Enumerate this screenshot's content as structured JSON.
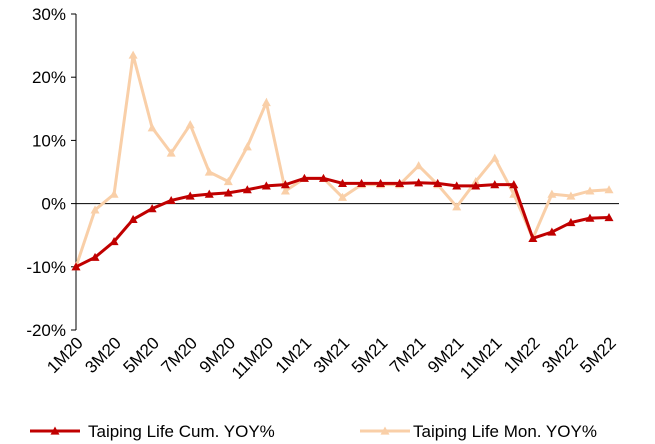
{
  "chart_data": {
    "type": "line",
    "categories": [
      "1M20",
      null,
      "3M20",
      null,
      "5M20",
      null,
      "7M20",
      null,
      "9M20",
      null,
      "11M20",
      null,
      "1M21",
      null,
      "3M21",
      null,
      "5M21",
      null,
      "7M21",
      null,
      "9M21",
      null,
      "11M21",
      null,
      "1M22",
      null,
      "3M22",
      null,
      "5M22"
    ],
    "series": [
      {
        "name": "Taiping Life Cum. YOY%",
        "color": "#c00000",
        "values": [
          -10,
          -8.5,
          -6,
          -2.5,
          -0.8,
          0.5,
          1.2,
          1.5,
          1.7,
          2.2,
          2.8,
          3,
          4,
          4,
          3.2,
          3.2,
          3.2,
          3.2,
          3.3,
          3.2,
          2.8,
          2.8,
          3,
          3,
          -5.5,
          -4.5,
          -3,
          -2.3,
          -2.2
        ]
      },
      {
        "name": "Taiping Life Mon. YOY%",
        "color": "#f9cfa8",
        "values": [
          -10,
          -1,
          1.5,
          23.5,
          12,
          8,
          12.5,
          5,
          3.5,
          9,
          16,
          2,
          4,
          4,
          1,
          3,
          3,
          3,
          6,
          3,
          -0.5,
          3.5,
          7.2,
          1.5,
          -5.5,
          1.5,
          1.2,
          2,
          2.2
        ]
      }
    ],
    "ylim": [
      -20,
      30
    ],
    "yticks": [
      {
        "value": -20,
        "label": "-20%"
      },
      {
        "value": -10,
        "label": "-10%"
      },
      {
        "value": 0,
        "label": "0%"
      },
      {
        "value": 10,
        "label": "10%"
      },
      {
        "value": 20,
        "label": "20%"
      },
      {
        "value": 30,
        "label": "30%"
      }
    ],
    "legend": "bottom"
  }
}
